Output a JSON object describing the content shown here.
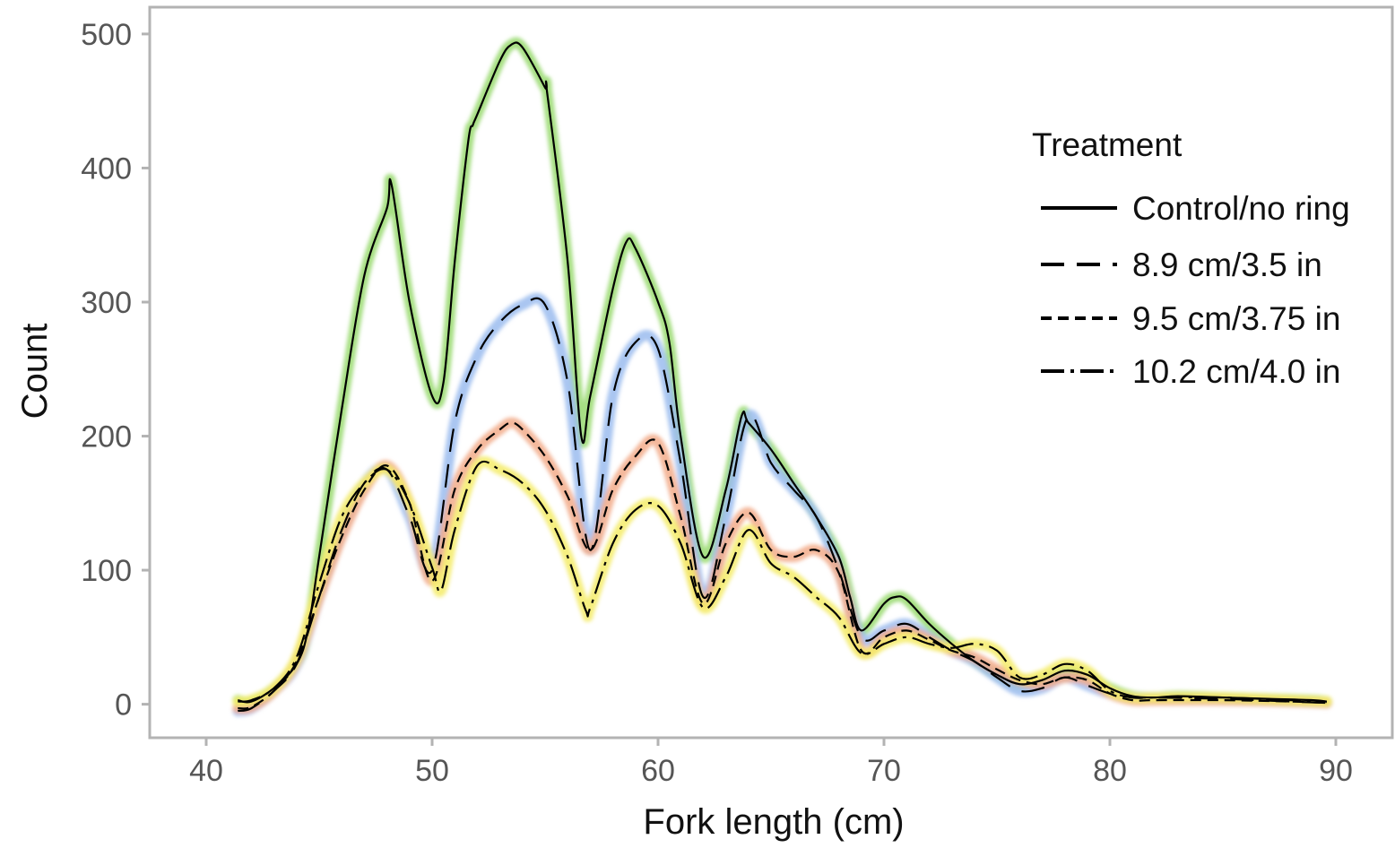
{
  "chart_data": {
    "type": "line",
    "xlabel": "Fork length (cm)",
    "ylabel": "Count",
    "xlim": [
      37.5,
      92.5
    ],
    "ylim": [
      -25,
      520
    ],
    "xticks": [
      40,
      50,
      60,
      70,
      80,
      90
    ],
    "yticks": [
      0,
      100,
      200,
      300,
      400,
      500
    ],
    "grid": false,
    "legend": {
      "title": "Treatment",
      "position": "right"
    },
    "series": [
      {
        "name": "Control/no ring",
        "glow_color": "#98d96e",
        "dash": "",
        "x": [
          41.4,
          42,
          43,
          44,
          44.5,
          45,
          46,
          47,
          48,
          48.2,
          49,
          50,
          50.5,
          51,
          51.6,
          51.8,
          52,
          53,
          53.5,
          54,
          55,
          55.1,
          56,
          56.6,
          57,
          58,
          58.6,
          59,
          60,
          60.5,
          61,
          62,
          63,
          63.7,
          64,
          65,
          66,
          67,
          68,
          68.5,
          69,
          70,
          70.5,
          71,
          72,
          73,
          74,
          75,
          76,
          77,
          78,
          79,
          80,
          81,
          82,
          83,
          85,
          87,
          89,
          89.6
        ],
        "values": [
          3,
          2,
          12,
          30,
          55,
          110,
          220,
          320,
          370,
          388,
          300,
          230,
          240,
          330,
          420,
          432,
          440,
          480,
          492,
          490,
          460,
          455,
          330,
          200,
          230,
          310,
          345,
          340,
          300,
          270,
          200,
          110,
          160,
          215,
          210,
          190,
          165,
          140,
          110,
          80,
          55,
          75,
          80,
          78,
          60,
          45,
          32,
          22,
          15,
          18,
          25,
          22,
          12,
          6,
          5,
          6,
          5,
          4,
          3,
          2
        ]
      },
      {
        "name": "8.9 cm/3.5 in",
        "glow_color": "#9bbcee",
        "dash": "26 14",
        "x": [
          41.4,
          42,
          43,
          44,
          45,
          46,
          47,
          48,
          49,
          50,
          51,
          52,
          53,
          54,
          55,
          56,
          57,
          58,
          59,
          60,
          61,
          62,
          63,
          64,
          65,
          66,
          67,
          68,
          69,
          70,
          71,
          72,
          73,
          74,
          75,
          76,
          77,
          78,
          79,
          80,
          81,
          82,
          85,
          88,
          89.6
        ],
        "values": [
          -5,
          -3,
          10,
          30,
          80,
          130,
          165,
          175,
          140,
          100,
          210,
          260,
          285,
          298,
          298,
          240,
          115,
          230,
          270,
          265,
          180,
          80,
          140,
          215,
          180,
          160,
          140,
          100,
          50,
          55,
          60,
          50,
          40,
          32,
          20,
          10,
          12,
          20,
          14,
          8,
          5,
          5,
          4,
          2,
          1
        ]
      },
      {
        "name": "9.5 cm/3.75 in",
        "glow_color": "#f2ab8a",
        "dash": "12 7",
        "x": [
          41.4,
          42,
          43,
          44,
          45,
          46,
          47,
          48,
          49,
          50,
          51,
          52,
          53,
          53.5,
          54,
          55,
          56,
          57,
          58,
          59,
          60,
          61,
          62,
          63,
          64,
          65,
          66,
          67,
          68,
          69,
          70,
          71,
          72,
          73,
          74,
          75,
          76,
          77,
          78,
          79,
          80,
          81,
          82,
          85,
          88,
          89.6
        ],
        "values": [
          -3,
          -2,
          10,
          32,
          80,
          125,
          160,
          178,
          150,
          92,
          160,
          190,
          205,
          210,
          205,
          185,
          155,
          115,
          160,
          185,
          195,
          140,
          75,
          120,
          143,
          115,
          110,
          115,
          98,
          40,
          50,
          55,
          48,
          40,
          35,
          26,
          18,
          15,
          20,
          18,
          8,
          3,
          3,
          3,
          2,
          1
        ]
      },
      {
        "name": "10.2 cm/4.0 in",
        "glow_color": "#f5ec6a",
        "dash": "26 7 4 7",
        "x": [
          41.4,
          42,
          43,
          44,
          45,
          46,
          47,
          48,
          49,
          50,
          50.4,
          51,
          52,
          53,
          54,
          55,
          56,
          56.8,
          57,
          58,
          59,
          60,
          61,
          62,
          63,
          64,
          65,
          66,
          67,
          68,
          69,
          70,
          71,
          72,
          73,
          74,
          75,
          76,
          77,
          78,
          79,
          80,
          81,
          82,
          85,
          88,
          89.6
        ],
        "values": [
          2,
          3,
          12,
          35,
          90,
          140,
          165,
          175,
          150,
          102,
          85,
          130,
          178,
          175,
          165,
          145,
          110,
          70,
          72,
          120,
          145,
          148,
          120,
          72,
          95,
          130,
          105,
          95,
          80,
          65,
          38,
          45,
          50,
          45,
          42,
          45,
          40,
          20,
          22,
          30,
          25,
          10,
          5,
          5,
          5,
          3,
          2
        ]
      }
    ]
  }
}
